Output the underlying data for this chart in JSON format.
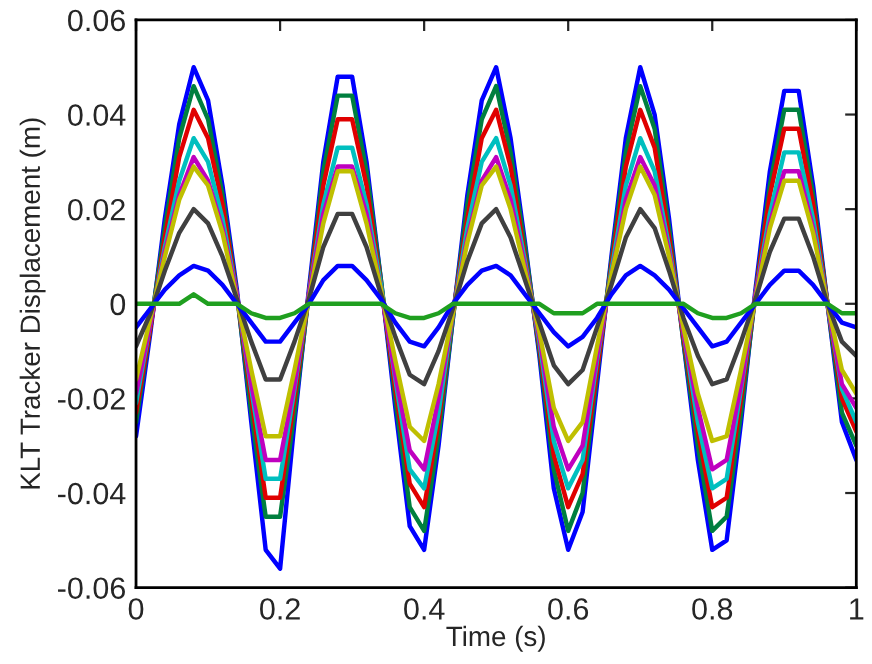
{
  "chart_data": {
    "type": "line",
    "xlabel": "Time (s)",
    "ylabel": "KLT Tracker Displacement (m)",
    "x": [
      0,
      0.02,
      0.04,
      0.06,
      0.08,
      0.1,
      0.12,
      0.14,
      0.16,
      0.18,
      0.2,
      0.22,
      0.24,
      0.26,
      0.28,
      0.3,
      0.32,
      0.34,
      0.36,
      0.38,
      0.4,
      0.42,
      0.44,
      0.46,
      0.48,
      0.5,
      0.52,
      0.54,
      0.56,
      0.58,
      0.6,
      0.62,
      0.64,
      0.66,
      0.68,
      0.7,
      0.72,
      0.74,
      0.76,
      0.78,
      0.8,
      0.82,
      0.84,
      0.86,
      0.88,
      0.9,
      0.92,
      0.94,
      0.96,
      0.98,
      1
    ],
    "xlim": [
      0,
      1
    ],
    "ylim": [
      -0.06,
      0.06
    ],
    "xticks": [
      0,
      0.2,
      0.4,
      0.6,
      0.8,
      1
    ],
    "yticks": [
      -0.06,
      -0.04,
      -0.02,
      0,
      0.02,
      0.04,
      0.06
    ],
    "grid": false,
    "legend": false,
    "marker": "none",
    "line_style": "solid",
    "series": [
      {
        "color": "#0000ff",
        "values": [
          -0.028,
          -0.006,
          0.018,
          0.038,
          0.05,
          0.043,
          0.025,
          0.003,
          -0.025,
          -0.052,
          -0.056,
          -0.025,
          0.003,
          0.03,
          0.048,
          0.048,
          0.03,
          0.005,
          -0.022,
          -0.047,
          -0.052,
          -0.03,
          -0.003,
          0.023,
          0.043,
          0.05,
          0.035,
          0.013,
          -0.011,
          -0.039,
          -0.052,
          -0.044,
          -0.017,
          0.01,
          0.035,
          0.05,
          0.04,
          0.018,
          -0.008,
          -0.033,
          -0.052,
          -0.05,
          -0.025,
          0.003,
          0.028,
          0.045,
          0.045,
          0.025,
          0,
          -0.025,
          -0.033
        ]
      },
      {
        "color": "#007f3f",
        "values": [
          -0.025,
          -0.005,
          0.016,
          0.035,
          0.046,
          0.039,
          0.023,
          0.002,
          -0.023,
          -0.045,
          -0.045,
          -0.023,
          0.002,
          0.028,
          0.044,
          0.044,
          0.028,
          0.005,
          -0.02,
          -0.043,
          -0.048,
          -0.028,
          -0.003,
          0.021,
          0.039,
          0.046,
          0.032,
          0.012,
          -0.01,
          -0.035,
          -0.048,
          -0.04,
          -0.015,
          0.009,
          0.032,
          0.046,
          0.037,
          0.016,
          -0.008,
          -0.03,
          -0.048,
          -0.045,
          -0.023,
          0.002,
          0.025,
          0.041,
          0.041,
          0.023,
          0,
          -0.023,
          -0.03
        ]
      },
      {
        "color": "#e00000",
        "values": [
          -0.023,
          -0.005,
          0.014,
          0.031,
          0.041,
          0.035,
          0.021,
          0.002,
          -0.02,
          -0.041,
          -0.041,
          -0.02,
          0.002,
          0.025,
          0.039,
          0.039,
          0.025,
          0.004,
          -0.018,
          -0.038,
          -0.043,
          -0.025,
          -0.002,
          0.018,
          0.035,
          0.041,
          0.029,
          0.01,
          -0.009,
          -0.032,
          -0.043,
          -0.036,
          -0.014,
          0.008,
          0.029,
          0.041,
          0.033,
          0.014,
          -0.007,
          -0.027,
          -0.043,
          -0.041,
          -0.02,
          0.002,
          0.023,
          0.037,
          0.037,
          0.021,
          0,
          -0.02,
          -0.027
        ]
      },
      {
        "color": "#00bfbf",
        "values": [
          -0.021,
          -0.004,
          0.012,
          0.026,
          0.035,
          0.03,
          0.018,
          0.002,
          -0.018,
          -0.037,
          -0.037,
          -0.018,
          0.002,
          0.021,
          0.033,
          0.033,
          0.021,
          0.004,
          -0.016,
          -0.035,
          -0.039,
          -0.023,
          -0.002,
          0.016,
          0.03,
          0.035,
          0.025,
          0.009,
          -0.008,
          -0.029,
          -0.039,
          -0.033,
          -0.012,
          0.007,
          0.025,
          0.035,
          0.028,
          0.012,
          -0.006,
          -0.025,
          -0.039,
          -0.037,
          -0.018,
          0.002,
          0.019,
          0.032,
          0.032,
          0.018,
          0,
          -0.018,
          -0.025
        ]
      },
      {
        "color": "#bf00bf",
        "values": [
          -0.019,
          -0.004,
          0.011,
          0.023,
          0.031,
          0.026,
          0.016,
          0.002,
          -0.017,
          -0.033,
          -0.033,
          -0.017,
          0.002,
          0.019,
          0.029,
          0.029,
          0.019,
          0.003,
          -0.015,
          -0.031,
          -0.035,
          -0.02,
          -0.002,
          0.014,
          0.026,
          0.031,
          0.022,
          0.008,
          -0.007,
          -0.026,
          -0.035,
          -0.03,
          -0.011,
          0.006,
          0.022,
          0.031,
          0.025,
          0.011,
          -0.006,
          -0.022,
          -0.035,
          -0.033,
          -0.017,
          0.002,
          0.017,
          0.028,
          0.028,
          0.016,
          0,
          -0.017,
          -0.022
        ]
      },
      {
        "color": "#bfbf00",
        "values": [
          -0.016,
          -0.003,
          0.01,
          0.022,
          0.029,
          0.025,
          0.015,
          0.001,
          -0.014,
          -0.028,
          -0.028,
          -0.014,
          0.001,
          0.017,
          0.028,
          0.028,
          0.017,
          0.003,
          -0.012,
          -0.026,
          -0.029,
          -0.017,
          -0.002,
          0.013,
          0.025,
          0.029,
          0.02,
          0.007,
          -0.006,
          -0.022,
          -0.029,
          -0.025,
          -0.009,
          0.006,
          0.02,
          0.029,
          0.023,
          0.01,
          -0.005,
          -0.019,
          -0.029,
          -0.028,
          -0.014,
          0.001,
          0.016,
          0.026,
          0.026,
          0.015,
          0,
          -0.014,
          -0.019
        ]
      },
      {
        "color": "#404040",
        "values": [
          -0.009,
          -0.002,
          0.007,
          0.015,
          0.02,
          0.017,
          0.01,
          0.001,
          -0.008,
          -0.016,
          -0.016,
          -0.008,
          0.001,
          0.012,
          0.019,
          0.019,
          0.012,
          0.002,
          -0.007,
          -0.015,
          -0.017,
          -0.01,
          -0.001,
          0.009,
          0.017,
          0.02,
          0.014,
          0.005,
          -0.004,
          -0.013,
          -0.017,
          -0.014,
          -0.005,
          0.004,
          0.014,
          0.02,
          0.016,
          0.007,
          -0.003,
          -0.011,
          -0.017,
          -0.016,
          -0.008,
          0.001,
          0.011,
          0.018,
          0.018,
          0.01,
          0,
          -0.008,
          -0.011
        ]
      },
      {
        "color": "#0000ff",
        "values": [
          -0.005,
          -0.001,
          0.003,
          0.006,
          0.008,
          0.007,
          0.004,
          0.0,
          -0.004,
          -0.008,
          -0.008,
          -0.004,
          0.0,
          0.005,
          0.008,
          0.008,
          0.005,
          0.001,
          -0.004,
          -0.008,
          -0.009,
          -0.005,
          0.0,
          0.004,
          0.007,
          0.008,
          0.006,
          0.002,
          -0.002,
          -0.006,
          -0.009,
          -0.007,
          -0.003,
          0.002,
          0.006,
          0.008,
          0.006,
          0.003,
          -0.001,
          -0.005,
          -0.009,
          -0.008,
          -0.004,
          0.0,
          0.004,
          0.007,
          0.007,
          0.004,
          0,
          -0.004,
          -0.005
        ]
      },
      {
        "color": "#1f9f1f",
        "values": [
          0,
          0,
          0,
          0,
          0.002,
          0,
          0,
          0,
          -0.002,
          -0.003,
          -0.003,
          -0.002,
          0,
          0,
          0,
          0,
          0,
          0,
          -0.002,
          -0.003,
          -0.003,
          -0.002,
          0,
          0,
          0,
          0,
          0,
          0,
          0,
          -0.002,
          -0.002,
          -0.002,
          0,
          0,
          0,
          0,
          0,
          0,
          0,
          -0.002,
          -0.003,
          -0.003,
          -0.002,
          0,
          0,
          0,
          0,
          0,
          0,
          -0.002,
          -0.002
        ]
      }
    ]
  }
}
